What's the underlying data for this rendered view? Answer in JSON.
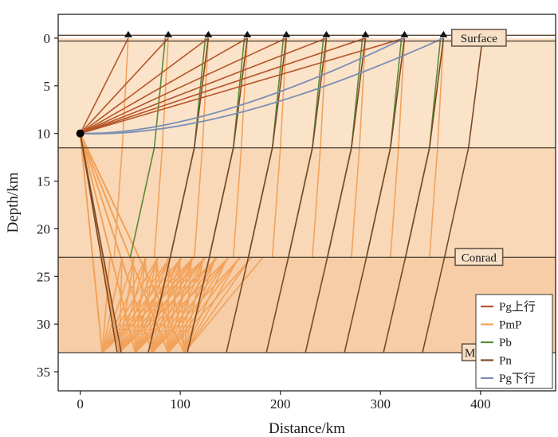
{
  "chart_data": {
    "type": "ray-path-diagram",
    "xlabel": "Distance/km",
    "ylabel": "Depth/km",
    "xlim": [
      -22,
      475
    ],
    "ylim": [
      37,
      -2.5
    ],
    "x_ticks": [
      0,
      100,
      200,
      300,
      400
    ],
    "y_ticks": [
      0,
      5,
      10,
      15,
      20,
      25,
      30,
      35
    ],
    "source": {
      "x": 0,
      "depth": 10
    },
    "stations": [
      48,
      88,
      128,
      167,
      206,
      246,
      285,
      324,
      363
    ],
    "layers": [
      {
        "label": "Surface",
        "top": 0,
        "bottom": 11.5,
        "fill": "#fbe3c9",
        "label_x": 400,
        "label_depth": 0
      },
      {
        "label": "Conrad",
        "top": 11.5,
        "bottom": 23,
        "fill": "#f9d8b7",
        "label_x": 400,
        "label_depth": 23
      },
      {
        "label": "Moho",
        "top": 23,
        "bottom": 33,
        "fill": "#f6cda6",
        "label_x": 400,
        "label_depth": 33
      }
    ],
    "interface_depths": [
      -0.3,
      0.3,
      11.5,
      23,
      33
    ],
    "pg_up_stations": [
      48,
      88,
      128,
      167,
      206,
      246,
      285,
      324
    ],
    "pg_down_stations": [
      363,
      324
    ],
    "pg_down_max_depth": [
      10.1,
      9.7
    ],
    "pmp_bounce_x": [
      22,
      39,
      55,
      72,
      88,
      104
    ],
    "pb_stations": [
      88,
      128,
      167,
      206,
      246,
      285,
      324,
      363
    ],
    "pn_stations": [
      128,
      167,
      206,
      246,
      285,
      324,
      363,
      402
    ],
    "colors": {
      "pg_up": "#b5552a",
      "pmp": "#f2a25a",
      "pb": "#5a8a35",
      "pn": "#7a4a26",
      "pg_down": "#7b8fb5",
      "station": "#111111",
      "source": "#000000",
      "interface": "#5a4a3a"
    },
    "legend": [
      {
        "label": "Pg上行",
        "color": "#b5552a"
      },
      {
        "label": "PmP",
        "color": "#f2a25a"
      },
      {
        "label": "Pb",
        "color": "#5a8a35"
      },
      {
        "label": "Pn",
        "color": "#7a4a26"
      },
      {
        "label": "Pg下行",
        "color": "#7b8fb5"
      }
    ],
    "legend_position": "lower-right"
  }
}
